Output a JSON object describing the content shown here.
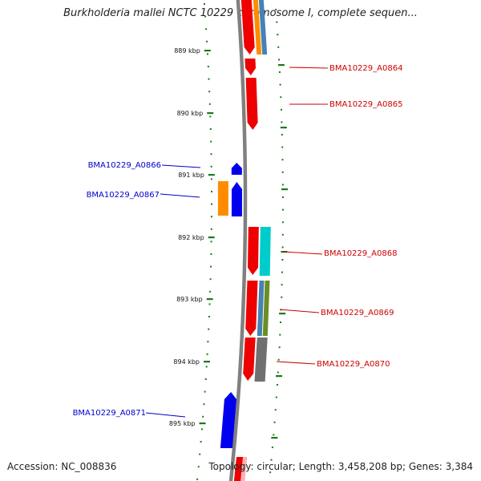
{
  "title": "Burkholderia mallei NCTC 10229 chromosome I, complete sequen...",
  "accession": "Accession: NC_008836",
  "topology": "Topology: circular; Length: 3,458,208 bp; Genes: 3,384",
  "colors": {
    "backbone": "#808080",
    "tick": "#1a7a1a",
    "forward_label": "#cc0000",
    "reverse_label": "#0000cc",
    "red": "#ee0000",
    "blue": "#0000ee",
    "orange": "#ff8c00",
    "steelblue": "#4682b4",
    "cyan": "#00cccc",
    "olive": "#6b8e23",
    "gray": "#707070",
    "pink": "#ffb0b0"
  },
  "ticks": [
    {
      "label": "889 kbp"
    },
    {
      "label": "890 kbp"
    },
    {
      "label": "891 kbp"
    },
    {
      "label": "892 kbp"
    },
    {
      "label": "893 kbp"
    },
    {
      "label": "894 kbp"
    },
    {
      "label": "895 kbp"
    }
  ],
  "gene_labels": [
    {
      "text": "BMA10229_A0864",
      "strand": "forward"
    },
    {
      "text": "BMA10229_A0865",
      "strand": "forward"
    },
    {
      "text": "BMA10229_A0866",
      "strand": "reverse"
    },
    {
      "text": "BMA10229_A0867",
      "strand": "reverse"
    },
    {
      "text": "BMA10229_A0868",
      "strand": "forward"
    },
    {
      "text": "BMA10229_A0869",
      "strand": "forward"
    },
    {
      "text": "BMA10229_A0870",
      "strand": "forward"
    },
    {
      "text": "BMA10229_A0871",
      "strand": "reverse"
    }
  ]
}
